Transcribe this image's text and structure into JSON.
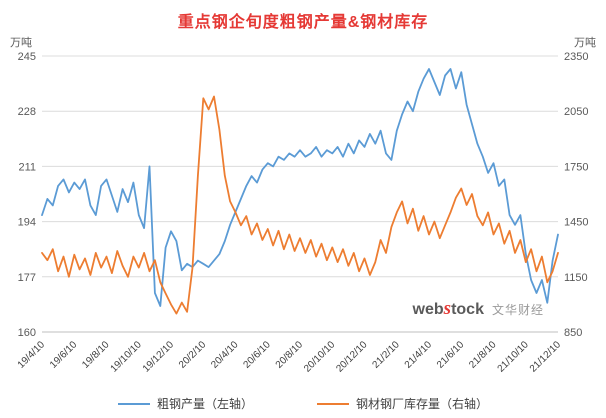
{
  "colors": {
    "title": "#e53935",
    "grid": "#dcdcdc",
    "axis_line": "#bfbfbf",
    "axis_text": "#595959",
    "x_tick_text": "#404040",
    "watermark_s": "#e53935"
  },
  "watermark": {
    "brand_prefix": "web",
    "brand_s": "s",
    "brand_suffix": "tock",
    "company": "文华财经"
  },
  "chart_data": {
    "type": "line",
    "title": "重点钢企旬度粗钢产量&钢材库存",
    "legend_position": "bottom",
    "grid": true,
    "left_axis": {
      "unit": "万吨",
      "min": 160,
      "max": 245,
      "ticks": [
        160,
        177,
        194,
        211,
        228,
        245
      ]
    },
    "right_axis": {
      "unit": "万吨",
      "min": 850,
      "max": 2350,
      "ticks": [
        850,
        1150,
        1450,
        1750,
        2050,
        2350
      ]
    },
    "points_per_tick": 6,
    "x_tick_labels": [
      "19/4/10",
      "19/6/10",
      "19/8/10",
      "19/10/10",
      "19/12/10",
      "20/2/10",
      "20/4/10",
      "20/6/10",
      "20/8/10",
      "20/10/10",
      "20/12/10",
      "21/2/10",
      "21/4/10",
      "21/6/10",
      "21/8/10",
      "21/10/10",
      "21/12/10"
    ],
    "series": [
      {
        "name": "粗钢产量（左轴）",
        "axis": "left",
        "color": "#5b9bd5",
        "values": [
          196,
          201,
          199,
          205,
          207,
          203,
          206,
          204,
          207,
          199,
          196,
          205,
          207,
          202,
          197,
          204,
          200,
          206,
          196,
          192,
          211,
          172,
          168,
          186,
          191,
          188,
          179,
          181,
          180,
          182,
          181,
          180,
          182,
          184,
          188,
          193,
          197,
          201,
          205,
          208,
          206,
          210,
          212,
          211,
          214,
          213,
          215,
          214,
          216,
          214,
          215,
          217,
          214,
          216,
          215,
          217,
          214,
          218,
          215,
          219,
          217,
          221,
          218,
          222,
          215,
          213,
          222,
          227,
          231,
          228,
          234,
          238,
          241,
          237,
          233,
          239,
          241,
          235,
          240,
          230,
          224,
          218,
          214,
          209,
          212,
          205,
          207,
          196,
          193,
          196,
          184,
          176,
          172,
          176,
          169,
          182,
          190
        ]
      },
      {
        "name": "钢材钢厂库存量（右轴）",
        "axis": "right",
        "color": "#ed7d31",
        "values": [
          1280,
          1240,
          1300,
          1180,
          1260,
          1150,
          1270,
          1190,
          1250,
          1160,
          1280,
          1200,
          1260,
          1170,
          1290,
          1210,
          1150,
          1260,
          1200,
          1280,
          1180,
          1240,
          1120,
          1060,
          1000,
          950,
          1010,
          960,
          1200,
          1700,
          2120,
          2060,
          2130,
          1950,
          1700,
          1560,
          1500,
          1430,
          1480,
          1380,
          1440,
          1350,
          1410,
          1320,
          1400,
          1300,
          1380,
          1290,
          1360,
          1280,
          1350,
          1260,
          1330,
          1240,
          1310,
          1230,
          1300,
          1210,
          1280,
          1180,
          1250,
          1160,
          1230,
          1350,
          1280,
          1420,
          1500,
          1560,
          1440,
          1520,
          1400,
          1480,
          1380,
          1450,
          1360,
          1430,
          1500,
          1580,
          1630,
          1540,
          1600,
          1480,
          1430,
          1500,
          1380,
          1440,
          1330,
          1400,
          1280,
          1350,
          1230,
          1300,
          1180,
          1260,
          1120,
          1180,
          1280
        ]
      }
    ]
  }
}
